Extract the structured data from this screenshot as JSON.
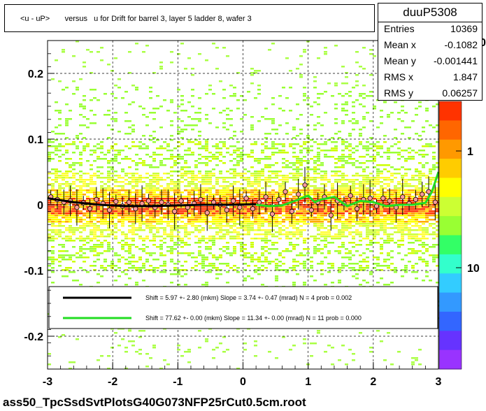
{
  "title": "<u - uP>       versus   u for Drift for barrel 3, layer 5 ladder 8, wafer 3",
  "footer": "ass50_TpcSsdSvtPlotsG40G073NFP25rCut0.5cm.root",
  "stats": {
    "name": "duuP5308",
    "rows": [
      {
        "key": "Entries",
        "value": "10369"
      },
      {
        "key": "Mean x",
        "value": "-0.1082"
      },
      {
        "key": "Mean y",
        "value": "-0.001441"
      },
      {
        "key": "RMS x",
        "value": "1.847"
      },
      {
        "key": "RMS y",
        "value": "0.06257"
      }
    ]
  },
  "legend": [
    {
      "color": "#000000",
      "text": "Shift =     5.97 +- 2.80 (mkm) Slope =     3.74 +- 0.47 (mrad)  N = 4 prob = 0.002"
    },
    {
      "color": "#22dd22",
      "text": "Shift =   77.62 +- 0.00 (mkm) Slope =    11.34 +- 0.00 (mrad)  N = 11 prob = 0.000"
    }
  ],
  "chart_data": {
    "type": "heatmap",
    "title": "<u - uP>       versus   u for Drift for barrel 3, layer 5 ladder 8, wafer 3",
    "xlim": [
      -3,
      3
    ],
    "ylim": [
      -0.25,
      0.25
    ],
    "x_ticks": [
      "-3",
      "-2",
      "-1",
      "0",
      "1",
      "2",
      "3"
    ],
    "y_ticks": [
      "-0.2",
      "-0.1",
      "0",
      "0.1",
      "0.2"
    ],
    "colorbar_ticks": [
      "1",
      "10"
    ],
    "colorbar_top_label": "0",
    "grid": true,
    "profile_points": {
      "x": [
        -2.95,
        -2.85,
        -2.75,
        -2.65,
        -2.55,
        -2.45,
        -2.35,
        -2.25,
        -2.15,
        -2.05,
        -1.95,
        -1.85,
        -1.75,
        -1.65,
        -1.55,
        -1.45,
        -1.35,
        -1.25,
        -1.15,
        -1.05,
        -0.95,
        -0.85,
        -0.75,
        -0.65,
        -0.55,
        -0.45,
        -0.35,
        -0.25,
        -0.15,
        -0.05,
        0.05,
        0.15,
        0.25,
        0.35,
        0.45,
        0.55,
        0.65,
        0.75,
        0.85,
        0.95,
        1.05,
        1.15,
        1.25,
        1.35,
        1.45,
        1.55,
        1.65,
        1.75,
        1.85,
        1.95,
        2.05,
        2.15,
        2.25,
        2.35,
        2.45,
        2.55,
        2.65,
        2.75,
        2.85,
        2.95
      ],
      "y": [
        0.012,
        0.008,
        0.004,
        0.006,
        -0.004,
        0.003,
        -0.006,
        0.008,
        0.002,
        -0.008,
        0.005,
        -0.002,
        0.004,
        -0.006,
        0.002,
        0.006,
        -0.004,
        0.004,
        0.0,
        -0.01,
        0.006,
        -0.004,
        0.002,
        0.008,
        -0.012,
        0.004,
        0.0,
        -0.008,
        0.006,
        -0.004,
        0.01,
        -0.006,
        0.004,
        0.012,
        -0.014,
        0.008,
        0.02,
        -0.01,
        0.016,
        0.03,
        -0.008,
        0.004,
        0.012,
        -0.016,
        0.006,
        0.002,
        0.014,
        -0.006,
        0.008,
        0.01,
        -0.002,
        0.01,
        0.006,
        -0.004,
        0.012,
        0.002,
        0.008,
        0.016,
        0.02,
        0.004
      ]
    },
    "fit_black": {
      "x": [
        -3,
        -2.6,
        -2.2,
        -1.8,
        -1.4,
        -1.0,
        -0.6,
        -0.2,
        0.2
      ],
      "y": [
        0.01,
        0.004,
        0.0,
        -0.002,
        -0.002,
        -0.001,
        0.0,
        0.0,
        0.001
      ]
    },
    "fit_green": {
      "x": [
        0.2,
        0.4,
        0.6,
        0.8,
        1.0,
        1.1,
        1.2,
        1.4,
        1.6,
        1.8,
        2.0,
        2.2,
        2.4,
        2.6,
        2.8,
        2.9,
        3.0
      ],
      "y": [
        0.0,
        -0.002,
        -0.001,
        0.006,
        0.014,
        0.004,
        0.008,
        0.012,
        -0.002,
        0.006,
        0.004,
        -0.002,
        0.0,
        0.0,
        0.003,
        0.02,
        0.05
      ]
    }
  }
}
